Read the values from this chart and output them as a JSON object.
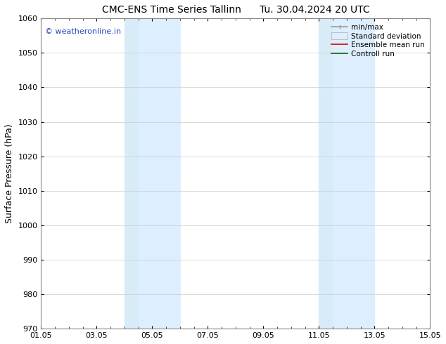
{
  "title": "CMC-ENS Time Series Tallinn",
  "title_right": "Tu. 30.04.2024 20 UTC",
  "ylabel": "Surface Pressure (hPa)",
  "ylim": [
    970,
    1060
  ],
  "yticks": [
    970,
    980,
    990,
    1000,
    1010,
    1020,
    1030,
    1040,
    1050,
    1060
  ],
  "xtick_labels": [
    "01.05",
    "03.05",
    "05.05",
    "07.05",
    "09.05",
    "11.05",
    "13.05",
    "15.05"
  ],
  "xtick_positions": [
    0,
    2,
    4,
    6,
    8,
    10,
    12,
    14
  ],
  "xlim": [
    0,
    14
  ],
  "shaded_bands": [
    {
      "xstart": 3.0,
      "xend": 3.5
    },
    {
      "xstart": 3.5,
      "xend": 5.0
    },
    {
      "xstart": 10.0,
      "xend": 10.5
    },
    {
      "xstart": 10.5,
      "xend": 12.0
    }
  ],
  "shaded_colors": [
    "#d8ecf8",
    "#ddeeff",
    "#d8ecf8",
    "#ddeeff"
  ],
  "watermark_text": "© weatheronline.in",
  "watermark_color": "#2244bb",
  "bg_color": "#ffffff",
  "grid_color": "#cccccc",
  "spine_color": "#888888",
  "title_fontsize": 10,
  "ylabel_fontsize": 9,
  "tick_fontsize": 8,
  "legend_fontsize": 7.5
}
